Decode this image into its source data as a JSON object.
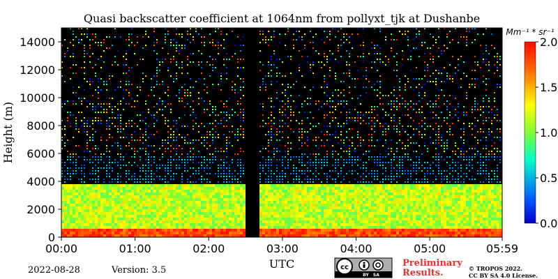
{
  "chart_data": {
    "type": "heatmap",
    "title": "Quasi backscatter coefficient at 1064nm from pollyxt_tjk at Dushanbe",
    "xlabel": "UTC",
    "ylabel": "Height (m)",
    "x_ticks": [
      "00:00",
      "01:00",
      "02:00",
      "03:00",
      "04:00",
      "05:00",
      "05:59"
    ],
    "y_ticks": [
      "0",
      "2000",
      "4000",
      "6000",
      "8000",
      "10000",
      "12000",
      "14000"
    ],
    "ylim": [
      0,
      15000
    ],
    "colorbar": {
      "unit": "Mm⁻¹ * sr⁻¹",
      "ticks": [
        "0.0",
        "0.5",
        "1.0",
        "1.5",
        "2.0"
      ],
      "range": [
        0,
        2.0
      ],
      "colormap": "jet"
    },
    "layers": [
      {
        "height_range": [
          0,
          700
        ],
        "value_range": [
          1.6,
          2.0
        ]
      },
      {
        "height_range": [
          700,
          3900
        ],
        "value_range": [
          0.9,
          1.4
        ]
      },
      {
        "height_range": [
          3900,
          15000
        ],
        "value_range": [
          0.0,
          2.0
        ]
      }
    ],
    "data_gap": {
      "utc": [
        "02:30",
        "02:40"
      ]
    }
  },
  "footer": {
    "date": "2022-08-28",
    "version": "Version: 3.5",
    "prelim_line1": "Preliminary",
    "prelim_line2": "Results.",
    "copyright_line1": "© TROPOS 2022.",
    "copyright_line2": "CC BY SA 4.0 License.",
    "license_badge_text": "BY   SA"
  }
}
